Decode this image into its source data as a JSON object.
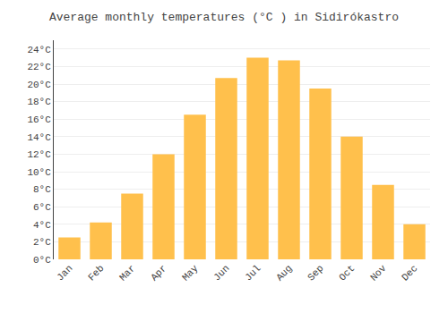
{
  "chart_data": {
    "type": "bar",
    "title": "Average monthly temperatures (°C ) in Sidirókastro",
    "categories": [
      "Jan",
      "Feb",
      "Mar",
      "Apr",
      "May",
      "Jun",
      "Jul",
      "Aug",
      "Sep",
      "Oct",
      "Nov",
      "Dec"
    ],
    "values": [
      2.5,
      4.2,
      7.5,
      12.0,
      16.5,
      20.7,
      23.0,
      22.7,
      19.5,
      14.0,
      8.5,
      4.0
    ],
    "color": "#FFC04C",
    "ylim": [
      0,
      25
    ],
    "yticks": [
      {
        "value": 0,
        "label": "0°C"
      },
      {
        "value": 2,
        "label": "2°C"
      },
      {
        "value": 4,
        "label": "4°C"
      },
      {
        "value": 6,
        "label": "6°C"
      },
      {
        "value": 8,
        "label": "8°C"
      },
      {
        "value": 10,
        "label": "10°C"
      },
      {
        "value": 12,
        "label": "12°C"
      },
      {
        "value": 14,
        "label": "14°C"
      },
      {
        "value": 16,
        "label": "16°C"
      },
      {
        "value": 18,
        "label": "18°C"
      },
      {
        "value": 20,
        "label": "20°C"
      },
      {
        "value": 22,
        "label": "22°C"
      },
      {
        "value": 24,
        "label": "24°C"
      }
    ],
    "grid": true
  }
}
